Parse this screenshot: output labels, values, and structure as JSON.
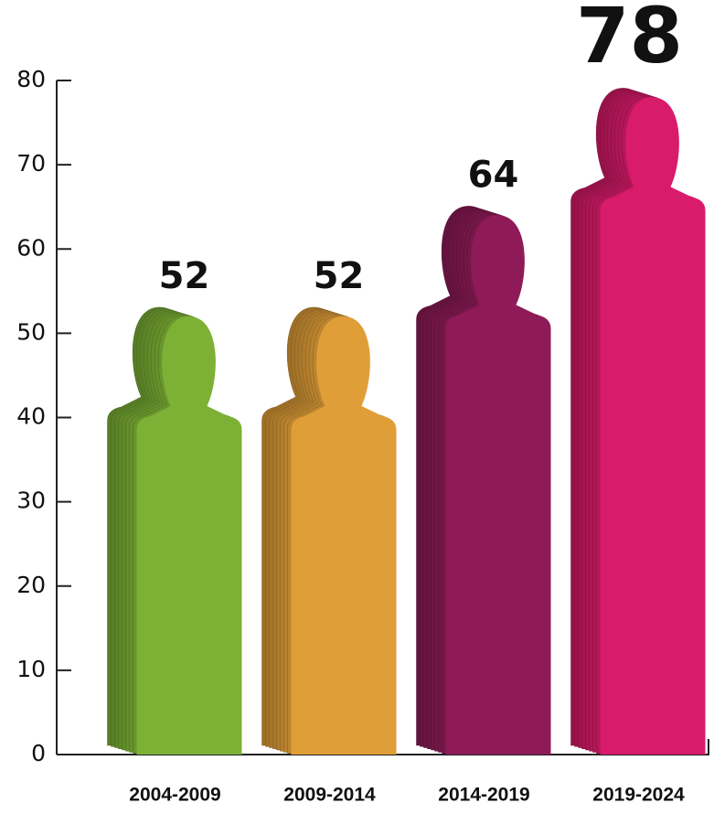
{
  "chart_data": {
    "type": "bar",
    "categories": [
      "2004-2009",
      "2009-2014",
      "2014-2019",
      "2019-2024"
    ],
    "values": [
      52,
      52,
      64,
      78
    ],
    "colors": [
      "#7cb135",
      "#e09e38",
      "#8e1b58",
      "#d81b6a"
    ],
    "ylim": [
      0,
      80
    ],
    "yticks": [
      0,
      10,
      20,
      30,
      40,
      50,
      60,
      70,
      80
    ],
    "grid": false
  }
}
